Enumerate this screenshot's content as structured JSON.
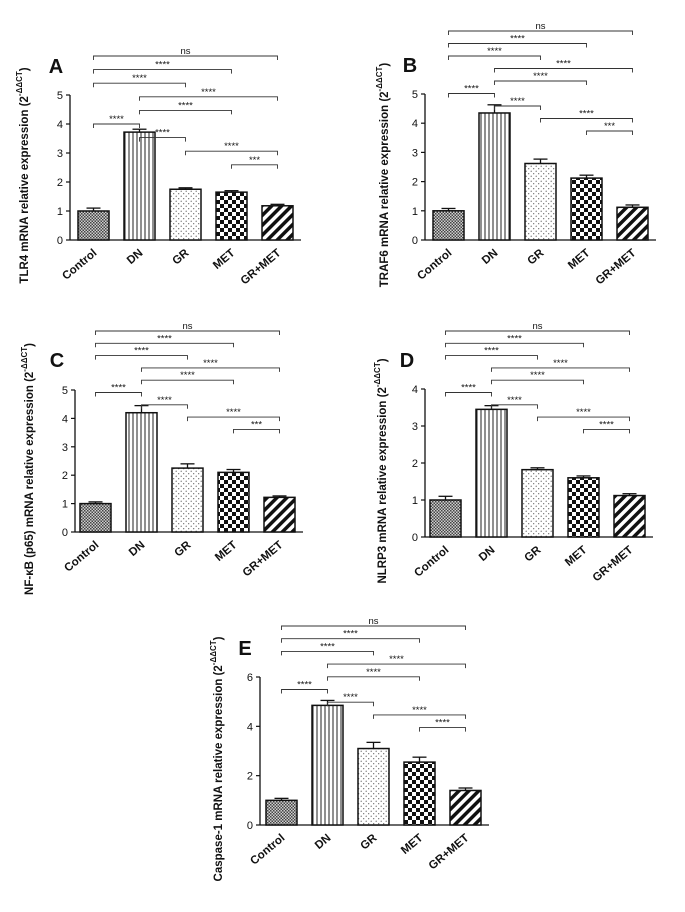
{
  "chart_data": [
    {
      "type": "bar",
      "panel": "A",
      "categories": [
        "Control",
        "DN",
        "GR",
        "MET",
        "GR+MET"
      ],
      "values": [
        1.0,
        3.72,
        1.75,
        1.65,
        1.18
      ],
      "errors": [
        0.1,
        0.1,
        0.05,
        0.05,
        0.05
      ],
      "ylabel": "TLR4 mRNA relative expression",
      "ylim": [
        0,
        5
      ],
      "yticks": [
        0,
        1,
        2,
        3,
        4,
        5
      ],
      "comparisons": [
        {
          "from": 0,
          "to": 4,
          "label": "ns"
        },
        {
          "from": 0,
          "to": 3,
          "label": "****"
        },
        {
          "from": 0,
          "to": 2,
          "label": "****"
        },
        {
          "from": 1,
          "to": 4,
          "label": "****"
        },
        {
          "from": 1,
          "to": 3,
          "label": "****"
        },
        {
          "from": 0,
          "to": 1,
          "label": "****"
        },
        {
          "from": 1,
          "to": 2,
          "label": "****"
        },
        {
          "from": 2,
          "to": 4,
          "label": "****"
        },
        {
          "from": 3,
          "to": 4,
          "label": "***"
        }
      ]
    },
    {
      "type": "bar",
      "panel": "B",
      "categories": [
        "Control",
        "DN",
        "GR",
        "MET",
        "GR+MET"
      ],
      "values": [
        1.0,
        4.35,
        2.62,
        2.12,
        1.12
      ],
      "errors": [
        0.08,
        0.28,
        0.15,
        0.1,
        0.08
      ],
      "ylabel": "TRAF6 mRNA relative expression",
      "ylim": [
        0,
        5
      ],
      "yticks": [
        0,
        1,
        2,
        3,
        4,
        5
      ],
      "comparisons": [
        {
          "from": 0,
          "to": 4,
          "label": "ns"
        },
        {
          "from": 0,
          "to": 3,
          "label": "****"
        },
        {
          "from": 0,
          "to": 2,
          "label": "****"
        },
        {
          "from": 1,
          "to": 4,
          "label": "****"
        },
        {
          "from": 1,
          "to": 3,
          "label": "****"
        },
        {
          "from": 0,
          "to": 1,
          "label": "****"
        },
        {
          "from": 1,
          "to": 2,
          "label": "****"
        },
        {
          "from": 2,
          "to": 4,
          "label": "****"
        },
        {
          "from": 3,
          "to": 4,
          "label": "***"
        }
      ]
    },
    {
      "type": "bar",
      "panel": "C",
      "categories": [
        "Control",
        "DN",
        "GR",
        "MET",
        "GR+MET"
      ],
      "values": [
        1.0,
        4.2,
        2.25,
        2.1,
        1.22
      ],
      "errors": [
        0.06,
        0.25,
        0.15,
        0.1,
        0.05
      ],
      "ylabel": "NF-κB (p65) mRNA relative expression",
      "ylim": [
        0,
        5
      ],
      "yticks": [
        0,
        1,
        2,
        3,
        4,
        5
      ],
      "comparisons": [
        {
          "from": 0,
          "to": 4,
          "label": "ns"
        },
        {
          "from": 0,
          "to": 3,
          "label": "****"
        },
        {
          "from": 0,
          "to": 2,
          "label": "****"
        },
        {
          "from": 1,
          "to": 4,
          "label": "****"
        },
        {
          "from": 1,
          "to": 3,
          "label": "****"
        },
        {
          "from": 0,
          "to": 1,
          "label": "****"
        },
        {
          "from": 1,
          "to": 2,
          "label": "****"
        },
        {
          "from": 2,
          "to": 4,
          "label": "****"
        },
        {
          "from": 3,
          "to": 4,
          "label": "***"
        }
      ]
    },
    {
      "type": "bar",
      "panel": "D",
      "categories": [
        "Control",
        "DN",
        "GR",
        "MET",
        "GR+MET"
      ],
      "values": [
        1.0,
        3.45,
        1.82,
        1.6,
        1.12
      ],
      "errors": [
        0.1,
        0.1,
        0.05,
        0.05,
        0.05
      ],
      "ylabel": "NLRP3 mRNA relative expression",
      "ylim": [
        0,
        4
      ],
      "yticks": [
        0,
        1,
        2,
        3,
        4
      ],
      "comparisons": [
        {
          "from": 0,
          "to": 4,
          "label": "ns"
        },
        {
          "from": 0,
          "to": 3,
          "label": "****"
        },
        {
          "from": 0,
          "to": 2,
          "label": "****"
        },
        {
          "from": 1,
          "to": 4,
          "label": "****"
        },
        {
          "from": 1,
          "to": 3,
          "label": "****"
        },
        {
          "from": 0,
          "to": 1,
          "label": "****"
        },
        {
          "from": 1,
          "to": 2,
          "label": "****"
        },
        {
          "from": 2,
          "to": 4,
          "label": "****"
        },
        {
          "from": 3,
          "to": 4,
          "label": "****"
        }
      ]
    },
    {
      "type": "bar",
      "panel": "E",
      "categories": [
        "Control",
        "DN",
        "GR",
        "MET",
        "GR+MET"
      ],
      "values": [
        1.0,
        4.85,
        3.1,
        2.55,
        1.4
      ],
      "errors": [
        0.08,
        0.2,
        0.25,
        0.2,
        0.1
      ],
      "ylabel": "Caspase-1 mRNA relative expression",
      "ylim": [
        0,
        6
      ],
      "yticks": [
        0,
        2,
        4,
        6
      ],
      "comparisons": [
        {
          "from": 0,
          "to": 4,
          "label": "ns"
        },
        {
          "from": 0,
          "to": 3,
          "label": "****"
        },
        {
          "from": 0,
          "to": 2,
          "label": "****"
        },
        {
          "from": 1,
          "to": 4,
          "label": "****"
        },
        {
          "from": 1,
          "to": 3,
          "label": "****"
        },
        {
          "from": 0,
          "to": 1,
          "label": "****"
        },
        {
          "from": 1,
          "to": 2,
          "label": "****"
        },
        {
          "from": 2,
          "to": 4,
          "label": "****"
        },
        {
          "from": 3,
          "to": 4,
          "label": "****"
        }
      ]
    }
  ],
  "ylabel_unit_base": "2",
  "ylabel_unit_exponent": "-ΔΔCT",
  "colors": {
    "ink": "#111111",
    "fill": "#ffffff",
    "pattern": "#222222"
  }
}
